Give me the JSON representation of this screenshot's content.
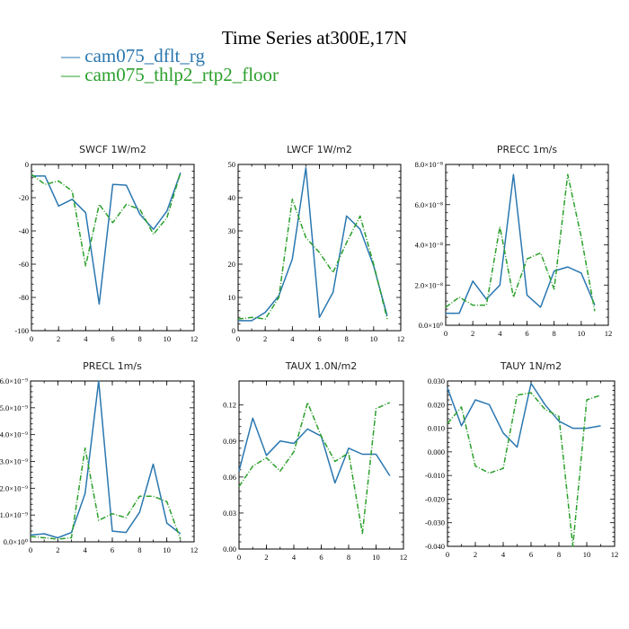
{
  "title": "Time Series at300E,17N",
  "legend": [
    {
      "label": "— cam075_dflt_rg",
      "color": "#2a77b0"
    },
    {
      "label": "— cam075_thlp2_rtp2_floor",
      "color": "#2ca02c"
    }
  ],
  "chart_data": [
    {
      "type": "line",
      "title": "SWCF   1W/m2",
      "x": [
        0,
        1,
        2,
        3,
        4,
        5,
        6,
        7,
        8,
        9,
        10,
        11
      ],
      "xlim": [
        0,
        12
      ],
      "xticks": [
        0,
        2,
        4,
        6,
        8,
        10,
        12
      ],
      "xtick_labels": [
        "0",
        "2",
        "4",
        "6",
        "8",
        "10",
        "12"
      ],
      "ylim": [
        -100,
        0
      ],
      "yticks": [
        -100,
        -80,
        -60,
        -40,
        -20,
        0
      ],
      "ytick_labels": [
        "-100",
        "-80",
        "-60",
        "-40",
        "-20",
        "0"
      ],
      "series": [
        {
          "values": [
            -7,
            -7,
            -25,
            -21,
            -29,
            -84,
            -12,
            -12.5,
            -30,
            -39,
            -28,
            -5
          ],
          "color": "#2a77b0",
          "dash": "none"
        },
        {
          "values": [
            -6,
            -12,
            -10,
            -16,
            -61,
            -24,
            -35,
            -24,
            -27,
            -42,
            -32,
            -5
          ],
          "color": "#2ca02c",
          "dash": "6,2,1,2"
        }
      ]
    },
    {
      "type": "line",
      "title": "LWCF   1W/m2",
      "x": [
        0,
        1,
        2,
        3,
        4,
        5,
        6,
        7,
        8,
        9,
        10,
        11
      ],
      "xlim": [
        0,
        12
      ],
      "xticks": [
        0,
        2,
        4,
        6,
        8,
        10,
        12
      ],
      "xtick_labels": [
        "0",
        "2",
        "4",
        "6",
        "8",
        "10",
        "12"
      ],
      "ylim": [
        0,
        50
      ],
      "yticks": [
        0,
        10,
        20,
        30,
        40,
        50
      ],
      "ytick_labels": [
        "0",
        "10",
        "20",
        "30",
        "40",
        "50"
      ],
      "series": [
        {
          "values": [
            3,
            3,
            5.5,
            10.5,
            21.5,
            49,
            4,
            11.5,
            34.5,
            30.5,
            19.5,
            4.5
          ],
          "color": "#2a77b0",
          "dash": "none"
        },
        {
          "values": [
            3.5,
            4,
            3.5,
            10,
            39.5,
            28,
            23.5,
            17.5,
            26.5,
            34.5,
            20,
            3.5
          ],
          "color": "#2ca02c",
          "dash": "6,2,1,2"
        }
      ]
    },
    {
      "type": "line",
      "title": "PRECC   1m/s",
      "x": [
        0,
        1,
        2,
        3,
        4,
        5,
        6,
        7,
        8,
        9,
        10,
        11
      ],
      "xlim": [
        0,
        12
      ],
      "xticks": [
        0,
        2,
        4,
        6,
        8,
        10,
        12
      ],
      "xtick_labels": [
        "0",
        "2",
        "4",
        "6",
        "8",
        "10",
        "12"
      ],
      "ylim": [
        0,
        8e-08
      ],
      "yticks": [
        0,
        2e-08,
        4e-08,
        6e-08,
        8e-08
      ],
      "ytick_labels": [
        "0.0×10⁰",
        "2.0×10⁻⁸",
        "4.0×10⁻⁸",
        "6.0×10⁻⁸",
        "8.0×10⁻⁸"
      ],
      "series": [
        {
          "values": [
            6e-09,
            6e-09,
            2.2e-08,
            1.3e-08,
            2e-08,
            7.5e-08,
            1.5e-08,
            9e-09,
            2.7e-08,
            2.9e-08,
            2.6e-08,
            1e-08
          ],
          "color": "#2a77b0",
          "dash": "none"
        },
        {
          "values": [
            9e-09,
            1.4e-08,
            1e-08,
            1e-08,
            4.9e-08,
            1.4e-08,
            3.3e-08,
            3.6e-08,
            1.8e-08,
            7.5e-08,
            4.4e-08,
            7e-09
          ],
          "color": "#2ca02c",
          "dash": "6,2,1,2"
        }
      ]
    },
    {
      "type": "line",
      "title": "PRECL   1m/s",
      "x": [
        0,
        1,
        2,
        3,
        4,
        5,
        6,
        7,
        8,
        9,
        10,
        11
      ],
      "xlim": [
        0,
        12
      ],
      "xticks": [
        0,
        2,
        4,
        6,
        8,
        10,
        12
      ],
      "xtick_labels": [
        "0",
        "2",
        "4",
        "6",
        "8",
        "10",
        "12"
      ],
      "ylim": [
        0,
        6e-09
      ],
      "yticks": [
        0,
        1e-09,
        2e-09,
        3e-09,
        4e-09,
        5e-09,
        6e-09
      ],
      "ytick_labels": [
        "0.0×10⁰",
        "1.0×10⁻⁹",
        "2.0×10⁻⁹",
        "3.0×10⁻⁹",
        "4.0×10⁻⁹",
        "5.0×10⁻⁹",
        "6.0×10⁻⁹"
      ],
      "series": [
        {
          "values": [
            2.5e-10,
            3e-10,
            1.5e-10,
            3.5e-10,
            1.8e-09,
            6e-09,
            4e-10,
            3.5e-10,
            1.1e-09,
            2.9e-09,
            7e-10,
            3e-10
          ],
          "color": "#2a77b0",
          "dash": "none"
        },
        {
          "values": [
            2e-10,
            1.5e-10,
            1e-10,
            1.5e-10,
            3.5e-09,
            8e-10,
            1.05e-09,
            9e-10,
            1.7e-09,
            1.7e-09,
            1.5e-09,
            1e-10
          ],
          "color": "#2ca02c",
          "dash": "6,2,1,2"
        }
      ]
    },
    {
      "type": "line",
      "title": "TAUX   1.0N/m2",
      "x": [
        0,
        1,
        2,
        3,
        4,
        5,
        6,
        7,
        8,
        9,
        10,
        11
      ],
      "xlim": [
        0,
        12
      ],
      "xticks": [
        0,
        2,
        4,
        6,
        8,
        10,
        12
      ],
      "xtick_labels": [
        "0",
        "2",
        "4",
        "6",
        "8",
        "10",
        "12"
      ],
      "ylim": [
        0,
        0.14
      ],
      "yticks": [
        0,
        0.03,
        0.06,
        0.09,
        0.12
      ],
      "ytick_labels": [
        "0.00",
        "0.03",
        "0.06",
        "0.09",
        "0.12"
      ],
      "series": [
        {
          "values": [
            0.065,
            0.109,
            0.078,
            0.09,
            0.088,
            0.1,
            0.094,
            0.055,
            0.084,
            0.079,
            0.079,
            0.061
          ],
          "color": "#2a77b0",
          "dash": "none"
        },
        {
          "values": [
            0.052,
            0.069,
            0.076,
            0.065,
            0.081,
            0.122,
            0.094,
            0.073,
            0.08,
            0.013,
            0.117,
            0.122
          ],
          "color": "#2ca02c",
          "dash": "6,2,1,2"
        }
      ]
    },
    {
      "type": "line",
      "title": "TAUY   1N/m2",
      "x": [
        0,
        1,
        2,
        3,
        4,
        5,
        6,
        7,
        8,
        9,
        10,
        11
      ],
      "xlim": [
        0,
        12
      ],
      "xticks": [
        0,
        2,
        4,
        6,
        8,
        10,
        12
      ],
      "xtick_labels": [
        "0",
        "2",
        "4",
        "6",
        "8",
        "10",
        "12"
      ],
      "ylim": [
        -0.04,
        0.03
      ],
      "yticks": [
        -0.04,
        -0.03,
        -0.02,
        -0.01,
        0.0,
        0.01,
        0.02,
        0.03
      ],
      "ytick_labels": [
        "-0.040",
        "-0.030",
        "-0.020",
        "-0.010",
        "0.000",
        "0.010",
        "0.020",
        "0.030"
      ],
      "series": [
        {
          "values": [
            0.027,
            0.011,
            0.022,
            0.02,
            0.008,
            0.002,
            0.029,
            0.02,
            0.013,
            0.01,
            0.01,
            0.011
          ],
          "color": "#2a77b0",
          "dash": "none"
        },
        {
          "values": [
            0.012,
            0.019,
            -0.006,
            -0.009,
            -0.007,
            0.024,
            0.025,
            0.018,
            0.015,
            -0.04,
            0.022,
            0.024
          ],
          "color": "#2ca02c",
          "dash": "6,2,1,2"
        }
      ]
    }
  ]
}
